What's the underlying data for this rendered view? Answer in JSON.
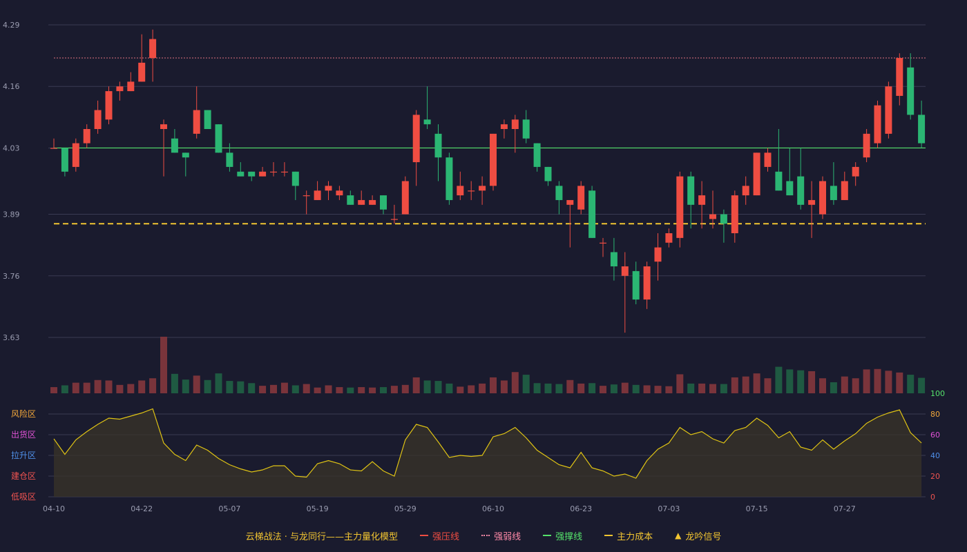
{
  "chart_data": [
    {
      "type": "candlestick",
      "ylim": [
        3.63,
        4.29
      ],
      "yticks": [
        "4.29",
        "4.16",
        "4.03",
        "3.89",
        "3.76",
        "3.63"
      ],
      "xticks": [
        {
          "index": 0,
          "label": "04-10"
        },
        {
          "index": 8,
          "label": "04-22"
        },
        {
          "index": 16,
          "label": "05-07"
        },
        {
          "index": 24,
          "label": "05-19"
        },
        {
          "index": 32,
          "label": "05-29"
        },
        {
          "index": 40,
          "label": "06-10"
        },
        {
          "index": 48,
          "label": "06-23"
        },
        {
          "index": 56,
          "label": "07-03"
        },
        {
          "index": 64,
          "label": "07-15"
        },
        {
          "index": 72,
          "label": "07-27"
        }
      ],
      "ohlc": [
        [
          4.03,
          4.03,
          4.05,
          4.03
        ],
        [
          4.03,
          3.98,
          4.03,
          3.97
        ],
        [
          3.99,
          4.04,
          4.05,
          3.98
        ],
        [
          4.04,
          4.07,
          4.08,
          4.03
        ],
        [
          4.07,
          4.11,
          4.13,
          4.06
        ],
        [
          4.09,
          4.15,
          4.16,
          4.08
        ],
        [
          4.15,
          4.16,
          4.17,
          4.13
        ],
        [
          4.15,
          4.17,
          4.19,
          4.15
        ],
        [
          4.17,
          4.21,
          4.27,
          4.17
        ],
        [
          4.22,
          4.26,
          4.28,
          4.17
        ],
        [
          4.07,
          4.08,
          4.09,
          3.97
        ],
        [
          4.05,
          4.02,
          4.07,
          4.02
        ],
        [
          4.02,
          4.01,
          4.02,
          3.97
        ],
        [
          4.06,
          4.11,
          4.16,
          4.05
        ],
        [
          4.11,
          4.07,
          4.11,
          4.07
        ],
        [
          4.08,
          4.02,
          4.08,
          4.02
        ],
        [
          4.02,
          3.99,
          4.04,
          3.98
        ],
        [
          3.98,
          3.97,
          4.0,
          3.97
        ],
        [
          3.98,
          3.97,
          3.98,
          3.96
        ],
        [
          3.97,
          3.98,
          3.99,
          3.97
        ],
        [
          3.98,
          3.98,
          4.0,
          3.97
        ],
        [
          3.98,
          3.98,
          4.0,
          3.97
        ],
        [
          3.98,
          3.95,
          3.98,
          3.92
        ],
        [
          3.93,
          3.93,
          3.94,
          3.89
        ],
        [
          3.92,
          3.94,
          3.96,
          3.92
        ],
        [
          3.94,
          3.95,
          3.96,
          3.92
        ],
        [
          3.93,
          3.94,
          3.95,
          3.92
        ],
        [
          3.93,
          3.91,
          3.94,
          3.91
        ],
        [
          3.91,
          3.92,
          3.94,
          3.91
        ],
        [
          3.91,
          3.92,
          3.93,
          3.91
        ],
        [
          3.93,
          3.9,
          3.93,
          3.89
        ],
        [
          3.88,
          3.88,
          3.91,
          3.87
        ],
        [
          3.89,
          3.96,
          3.97,
          3.89
        ],
        [
          4.0,
          4.1,
          4.11,
          3.95
        ],
        [
          4.09,
          4.08,
          4.16,
          4.07
        ],
        [
          4.06,
          4.01,
          4.08,
          3.96
        ],
        [
          4.01,
          3.92,
          4.02,
          3.91
        ],
        [
          3.93,
          3.95,
          3.98,
          3.92
        ],
        [
          3.94,
          3.94,
          3.96,
          3.92
        ],
        [
          3.94,
          3.95,
          3.97,
          3.91
        ],
        [
          3.95,
          4.06,
          4.06,
          3.94
        ],
        [
          4.07,
          4.08,
          4.09,
          4.05
        ],
        [
          4.07,
          4.09,
          4.1,
          4.02
        ],
        [
          4.09,
          4.05,
          4.11,
          4.04
        ],
        [
          4.04,
          3.99,
          4.04,
          3.98
        ],
        [
          3.99,
          3.96,
          3.99,
          3.95
        ],
        [
          3.95,
          3.92,
          3.96,
          3.89
        ],
        [
          3.91,
          3.92,
          3.92,
          3.82
        ],
        [
          3.9,
          3.95,
          3.96,
          3.89
        ],
        [
          3.94,
          3.84,
          3.95,
          3.84
        ],
        [
          3.83,
          3.83,
          3.84,
          3.8
        ],
        [
          3.81,
          3.78,
          3.84,
          3.75
        ],
        [
          3.76,
          3.78,
          3.81,
          3.64
        ],
        [
          3.77,
          3.71,
          3.79,
          3.7
        ],
        [
          3.71,
          3.78,
          3.79,
          3.69
        ],
        [
          3.79,
          3.82,
          3.85,
          3.75
        ],
        [
          3.83,
          3.85,
          3.86,
          3.82
        ],
        [
          3.84,
          3.97,
          3.98,
          3.82
        ],
        [
          3.97,
          3.91,
          3.98,
          3.86
        ],
        [
          3.91,
          3.93,
          3.96,
          3.86
        ],
        [
          3.88,
          3.89,
          3.94,
          3.86
        ],
        [
          3.89,
          3.87,
          3.9,
          3.83
        ],
        [
          3.85,
          3.93,
          3.94,
          3.83
        ],
        [
          3.93,
          3.95,
          3.97,
          3.91
        ],
        [
          3.93,
          4.02,
          4.02,
          3.93
        ],
        [
          3.99,
          4.02,
          4.03,
          3.98
        ],
        [
          3.98,
          3.94,
          4.07,
          3.94
        ],
        [
          3.96,
          3.93,
          4.03,
          3.93
        ],
        [
          3.97,
          3.91,
          4.03,
          3.9
        ],
        [
          3.91,
          3.92,
          3.96,
          3.84
        ],
        [
          3.89,
          3.96,
          3.97,
          3.88
        ],
        [
          3.95,
          3.92,
          4.0,
          3.91
        ],
        [
          3.92,
          3.96,
          3.98,
          3.92
        ],
        [
          3.97,
          3.99,
          4.0,
          3.95
        ],
        [
          4.01,
          4.06,
          4.07,
          4.0
        ],
        [
          4.04,
          4.12,
          4.13,
          4.03
        ],
        [
          4.06,
          4.16,
          4.17,
          4.05
        ],
        [
          4.14,
          4.22,
          4.23,
          4.12
        ],
        [
          4.2,
          4.1,
          4.23,
          4.09
        ],
        [
          4.1,
          4.04,
          4.13,
          4.03
        ]
      ],
      "volume": [
        14,
        18,
        24,
        24,
        30,
        29,
        19,
        21,
        29,
        34,
        128,
        44,
        31,
        40,
        30,
        45,
        28,
        27,
        23,
        17,
        19,
        24,
        18,
        21,
        13,
        18,
        14,
        13,
        14,
        13,
        14,
        17,
        19,
        36,
        29,
        28,
        22,
        15,
        18,
        22,
        36,
        29,
        48,
        42,
        23,
        22,
        21,
        30,
        22,
        23,
        17,
        20,
        24,
        19,
        18,
        17,
        16,
        43,
        22,
        22,
        21,
        21,
        36,
        38,
        45,
        34,
        60,
        54,
        52,
        50,
        34,
        25,
        38,
        34,
        54,
        55,
        51,
        47,
        42,
        35
      ],
      "lines": {
        "strong_resistance": 4.03,
        "strong_weak": 4.22,
        "main_cost": 3.87
      }
    },
    {
      "type": "line",
      "ylim": [
        0,
        100
      ],
      "rticks": [
        "100",
        "80",
        "60",
        "40",
        "20",
        "0"
      ],
      "zones": [
        "风险区",
        "出货区",
        "拉升区",
        "建仓区",
        "低吸区"
      ],
      "values": [
        56,
        41,
        55,
        63,
        70,
        76,
        75,
        78,
        81,
        85,
        52,
        41,
        35,
        50,
        45,
        37,
        31,
        27,
        24,
        26,
        30,
        30,
        20,
        19,
        32,
        35,
        32,
        26,
        25,
        34,
        25,
        20,
        55,
        70,
        67,
        53,
        38,
        40,
        39,
        40,
        58,
        61,
        67,
        57,
        45,
        38,
        31,
        28,
        43,
        28,
        25,
        20,
        22,
        18,
        35,
        46,
        52,
        67,
        60,
        63,
        56,
        52,
        64,
        67,
        76,
        69,
        57,
        63,
        48,
        45,
        55,
        46,
        54,
        61,
        71,
        77,
        81,
        84,
        62,
        52
      ]
    }
  ],
  "legend": {
    "title": "云梯战法 · 与龙同行——主力量化模型",
    "items": [
      {
        "label": "强压线",
        "color": "#ef4d42",
        "style": "solid"
      },
      {
        "label": "强弱线",
        "color": "#ff8aa8",
        "style": "dotted"
      },
      {
        "label": "强撑线",
        "color": "#55e36b",
        "style": "solid"
      },
      {
        "label": "主力成本",
        "color": "#f2c531",
        "style": "dashed"
      },
      {
        "label": "龙吟信号",
        "color": "#f2c531",
        "style": "triangle"
      }
    ]
  },
  "colors": {
    "up": "#ef4d42",
    "down": "#2bb673",
    "vol_up": "#7a343b",
    "vol_down": "#1f5a42",
    "grid": "#3a3b52",
    "osc_line": "#e0c414",
    "zone_colors": [
      "#f2a73b",
      "#e052d6",
      "#4f8fe8",
      "#ef5350",
      "#ef5350"
    ],
    "rtick_colors": [
      "#55e36b",
      "#f2a73b",
      "#e052d6",
      "#4f8fe8",
      "#ef5350",
      "#ef5350"
    ]
  }
}
